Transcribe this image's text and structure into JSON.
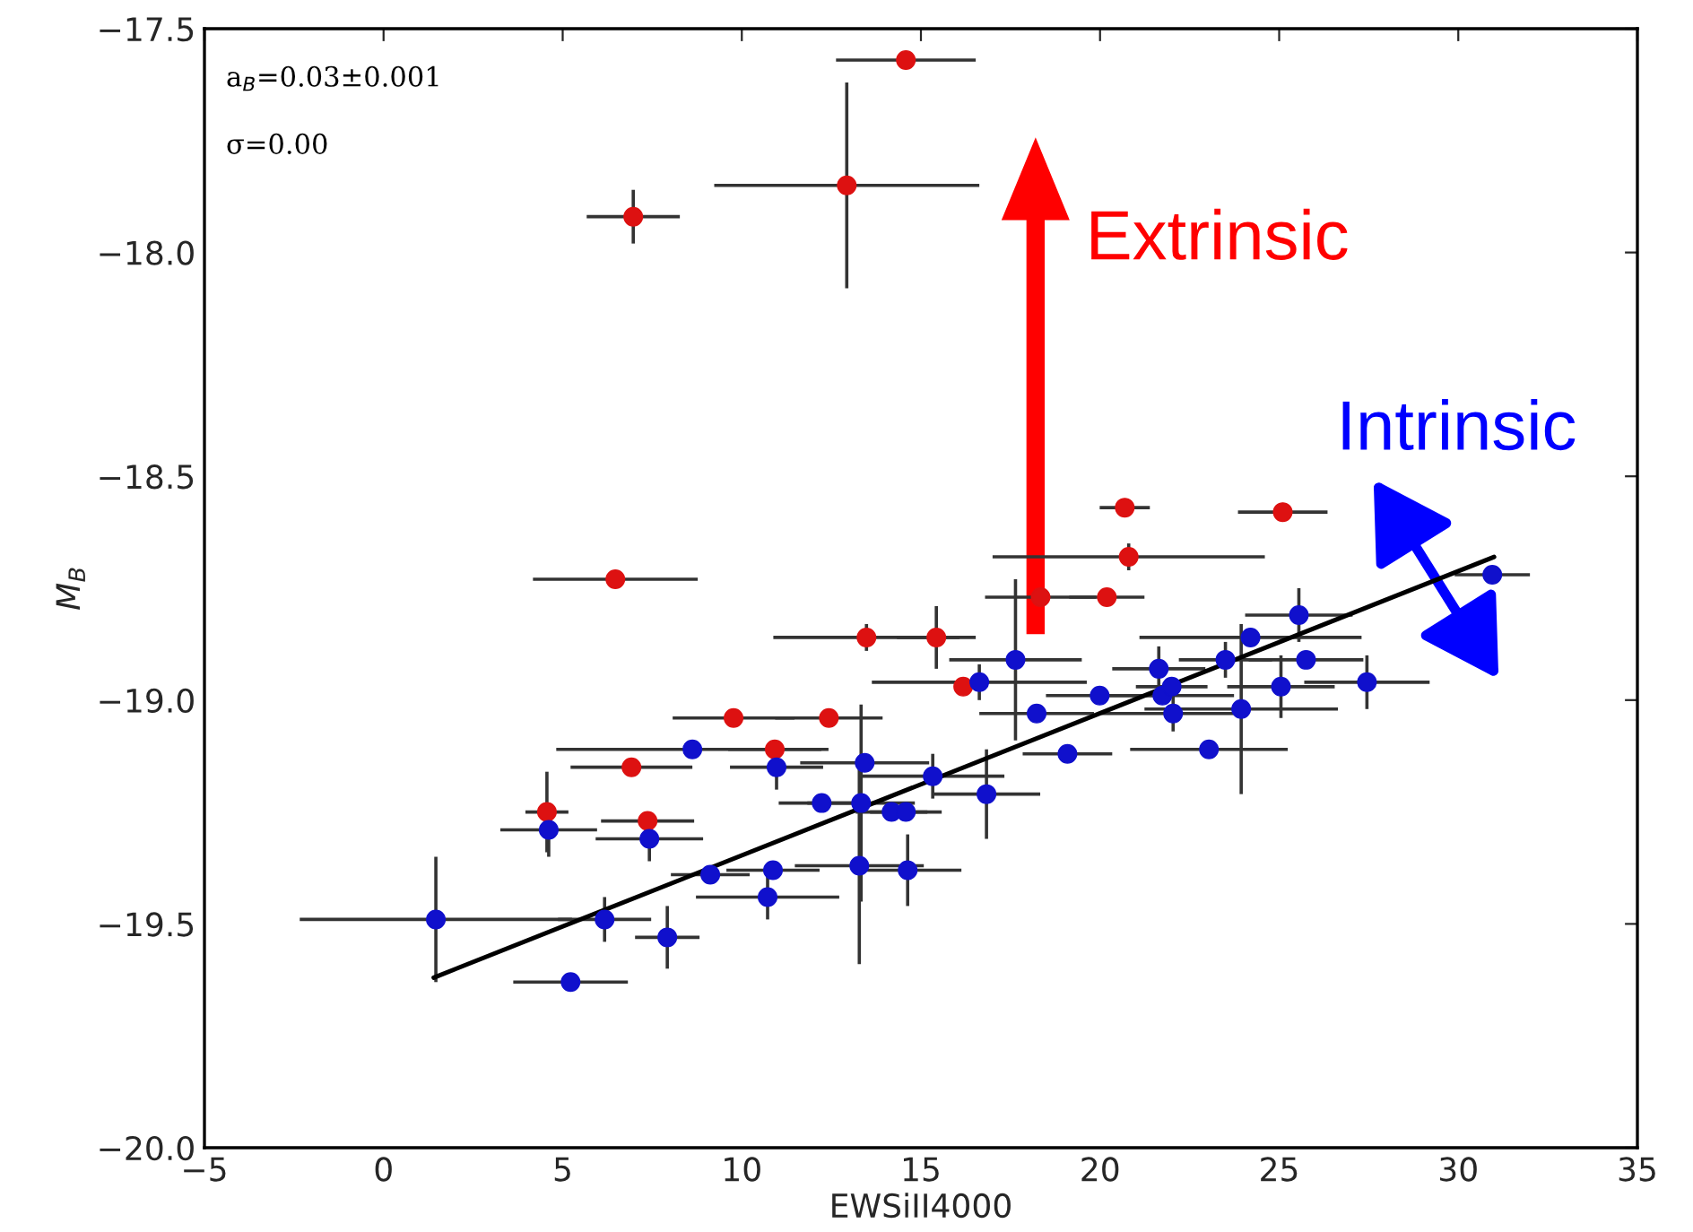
{
  "chart_data": {
    "type": "scatter",
    "xlabel": "EWSiII4000",
    "ylabel": "M$_{B}$",
    "annotations": [
      "a$_{B}$=0.03±0.001",
      "σ=0.00",
      "Extrinsic",
      "Intrinsic"
    ],
    "xlim": [
      -5,
      35
    ],
    "xticks": [
      {
        "value": -5,
        "label": "−5"
      },
      0,
      5,
      10,
      15,
      20,
      25,
      30,
      35
    ],
    "ylim": [
      -20.0,
      -17.5
    ],
    "yticks": [
      {
        "value": -17.5,
        "label": "−17.5"
      },
      {
        "value": -18.0,
        "label": "−18.0"
      },
      {
        "value": -18.5,
        "label": "−18.5"
      },
      {
        "value": -19.0,
        "label": "−19.0"
      },
      {
        "value": -19.5,
        "label": "−19.5"
      },
      {
        "value": -20.0,
        "label": "−20.0"
      }
    ],
    "grid": false,
    "marker": "circle",
    "series": [
      {
        "color": "#dd1111",
        "x": [
          14.58,
          12.93,
          6.97,
          6.47,
          20.69,
          25.1,
          20.8,
          20.19,
          18.34,
          13.48,
          15.43,
          16.18,
          12.43,
          9.77,
          10.92,
          6.92,
          4.56,
          7.37
        ],
        "values": [
          -17.57,
          -17.85,
          -17.92,
          -18.73,
          -18.57,
          -18.58,
          -18.68,
          -18.77,
          -18.77,
          -18.86,
          -18.86,
          -18.97,
          -19.04,
          -19.04,
          -19.11,
          -19.15,
          -19.25,
          -19.27
        ],
        "xerrors": [
          1.95,
          3.7,
          1.3,
          2.3,
          0.7,
          1.25,
          3.8,
          1.05,
          1.55,
          2.6,
          1.1,
          null,
          1.5,
          1.7,
          1.3,
          1.7,
          0.6,
          1.3
        ],
        "errors": [
          null,
          0.23,
          0.06,
          null,
          null,
          null,
          0.03,
          null,
          null,
          0.03,
          0.07,
          null,
          null,
          null,
          null,
          null,
          0.09,
          null
        ]
      },
      {
        "color": "#1010cc",
        "x": [
          8.62,
          10.97,
          13.43,
          12.23,
          13.33,
          14.18,
          14.58,
          4.61,
          7.42,
          9.12,
          10.87,
          13.28,
          14.63,
          10.72,
          1.46,
          6.17,
          7.92,
          5.22,
          30.95,
          25.55,
          24.2,
          25.75,
          23.5,
          17.64,
          21.64,
          27.45,
          25.05,
          16.63,
          19.99,
          21.74,
          22.0,
          18.23,
          22.04,
          23.94,
          19.09,
          23.04,
          15.33,
          16.83
        ],
        "values": [
          -19.11,
          -19.15,
          -19.14,
          -19.23,
          -19.23,
          -19.25,
          -19.25,
          -19.29,
          -19.31,
          -19.39,
          -19.38,
          -19.37,
          -19.38,
          -19.44,
          -19.49,
          -19.49,
          -19.53,
          -19.63,
          -18.72,
          -18.81,
          -18.86,
          -18.91,
          -18.91,
          -18.91,
          -18.93,
          -18.96,
          -18.97,
          -18.96,
          -18.99,
          -18.99,
          -18.97,
          -19.03,
          -19.03,
          -19.02,
          -19.12,
          -19.11,
          -19.17,
          -19.21
        ],
        "xerrors": [
          3.8,
          1.3,
          1.8,
          1.2,
          1.5,
          1.0,
          1.0,
          1.35,
          1.5,
          1.1,
          1.3,
          1.8,
          1.5,
          2.0,
          3.8,
          1.3,
          0.9,
          1.6,
          1.05,
          1.5,
          3.1,
          1.6,
          1.3,
          1.85,
          1.3,
          1.75,
          1.5,
          3.0,
          1.5,
          2.0,
          1.0,
          1.6,
          2.0,
          2.7,
          1.25,
          2.2,
          2.0,
          1.5
        ],
        "errors": [
          null,
          0.05,
          null,
          null,
          0.22,
          null,
          null,
          0.06,
          0.05,
          null,
          null,
          0.22,
          0.08,
          0.05,
          0.14,
          0.05,
          0.07,
          null,
          null,
          0.06,
          null,
          null,
          0.04,
          0.18,
          0.05,
          0.06,
          0.07,
          0.04,
          null,
          null,
          null,
          null,
          0.04,
          0.19,
          null,
          null,
          0.05,
          0.1
        ]
      },
      {
        "type": "line",
        "marker": "none",
        "color": "#000000",
        "x": [
          1.4,
          31.0
        ],
        "values": [
          -19.62,
          -18.68
        ]
      }
    ]
  }
}
